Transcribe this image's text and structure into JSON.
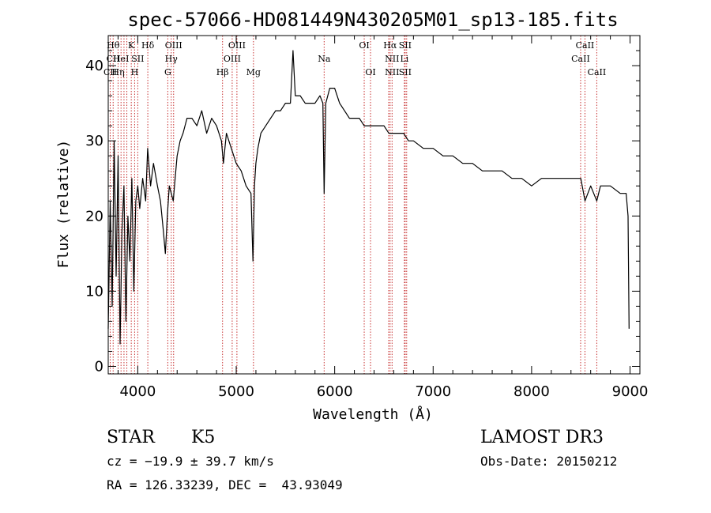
{
  "chart_data": {
    "type": "line",
    "title": "spec-57066-HD081449N430205M01_sp13-185.fits",
    "xlabel": "Wavelength (Å)",
    "ylabel": "Flux (relative)",
    "xlim": [
      3700,
      9100
    ],
    "ylim": [
      -1,
      44
    ],
    "xticks": [
      4000,
      5000,
      6000,
      7000,
      8000,
      9000
    ],
    "yticks": [
      0,
      10,
      20,
      30,
      40
    ],
    "grid": false,
    "series": [
      {
        "color": "#000000",
        "x": [
          3700,
          3720,
          3740,
          3760,
          3780,
          3800,
          3820,
          3840,
          3860,
          3880,
          3900,
          3920,
          3940,
          3960,
          3980,
          4000,
          4020,
          4050,
          4080,
          4100,
          4130,
          4160,
          4200,
          4230,
          4260,
          4280,
          4300,
          4320,
          4340,
          4360,
          4380,
          4400,
          4430,
          4460,
          4500,
          4550,
          4600,
          4650,
          4700,
          4750,
          4800,
          4850,
          4870,
          4900,
          4950,
          5000,
          5050,
          5100,
          5150,
          5170,
          5185,
          5200,
          5220,
          5250,
          5300,
          5350,
          5400,
          5450,
          5500,
          5550,
          5577,
          5600,
          5650,
          5700,
          5750,
          5800,
          5850,
          5880,
          5893,
          5910,
          5950,
          6000,
          6050,
          6100,
          6150,
          6200,
          6250,
          6300,
          6350,
          6400,
          6450,
          6500,
          6550,
          6563,
          6600,
          6650,
          6700,
          6750,
          6800,
          6900,
          7000,
          7100,
          7200,
          7300,
          7400,
          7500,
          7600,
          7700,
          7800,
          7900,
          8000,
          8100,
          8200,
          8300,
          8400,
          8500,
          8542,
          8600,
          8662,
          8700,
          8800,
          8900,
          8960,
          8980,
          8990
        ],
        "y": [
          5,
          22,
          8,
          30,
          12,
          28,
          3,
          18,
          24,
          6,
          20,
          14,
          25,
          10,
          22,
          24,
          21,
          25,
          22,
          29,
          24,
          27,
          24,
          22,
          18,
          15,
          20,
          24,
          23,
          22,
          25,
          28,
          30,
          31,
          33,
          33,
          32,
          34,
          31,
          33,
          32,
          30,
          27,
          31,
          29,
          27,
          26,
          24,
          23,
          14,
          24,
          27,
          29,
          31,
          32,
          33,
          34,
          34,
          35,
          35,
          42,
          36,
          36,
          35,
          35,
          35,
          36,
          35,
          23,
          35,
          37,
          37,
          35,
          34,
          33,
          33,
          33,
          32,
          32,
          32,
          32,
          32,
          31,
          31,
          31,
          31,
          31,
          30,
          30,
          29,
          29,
          28,
          28,
          27,
          27,
          26,
          26,
          26,
          25,
          25,
          24,
          25,
          25,
          25,
          25,
          25,
          22,
          24,
          22,
          24,
          24,
          23,
          23,
          20,
          5
        ]
      }
    ],
    "lines": [
      {
        "x": 3720,
        "labels": [
          "",
          "",
          "CII"
        ]
      },
      {
        "x": 3750,
        "labels": [
          "Hθ",
          "CII",
          ""
        ]
      },
      {
        "x": 3800,
        "labels": [
          "",
          "",
          "Hη"
        ]
      },
      {
        "x": 3830,
        "labels": [
          "",
          "HeI",
          ""
        ]
      },
      {
        "x": 3860,
        "labels": [
          "",
          "",
          ""
        ]
      },
      {
        "x": 3889,
        "labels": [
          "",
          "",
          ""
        ]
      },
      {
        "x": 3934,
        "labels": [
          "K",
          "",
          ""
        ]
      },
      {
        "x": 3968,
        "labels": [
          "",
          "",
          "H"
        ]
      },
      {
        "x": 4000,
        "labels": [
          "",
          "SII",
          ""
        ]
      },
      {
        "x": 4102,
        "labels": [
          "Hδ",
          "",
          ""
        ]
      },
      {
        "x": 4305,
        "labels": [
          "",
          "",
          "G"
        ]
      },
      {
        "x": 4340,
        "labels": [
          "",
          "Hγ",
          ""
        ]
      },
      {
        "x": 4364,
        "labels": [
          "OIII",
          "",
          ""
        ]
      },
      {
        "x": 4861,
        "labels": [
          "",
          "",
          "Hβ"
        ]
      },
      {
        "x": 4959,
        "labels": [
          "",
          "OIII",
          ""
        ]
      },
      {
        "x": 5007,
        "labels": [
          "OIII",
          "",
          ""
        ]
      },
      {
        "x": 5175,
        "labels": [
          "",
          "",
          "Mg"
        ]
      },
      {
        "x": 5893,
        "labels": [
          "",
          "Na",
          ""
        ]
      },
      {
        "x": 6300,
        "labels": [
          "OI",
          "",
          ""
        ]
      },
      {
        "x": 6364,
        "labels": [
          "",
          "",
          "OI"
        ]
      },
      {
        "x": 6548,
        "labels": [
          "",
          "",
          ""
        ]
      },
      {
        "x": 6563,
        "labels": [
          "Hα",
          "",
          ""
        ]
      },
      {
        "x": 6583,
        "labels": [
          "",
          "NII",
          "NII"
        ]
      },
      {
        "x": 6708,
        "labels": [
          "",
          "Li",
          ""
        ]
      },
      {
        "x": 6716,
        "labels": [
          "SII",
          "",
          "SII"
        ]
      },
      {
        "x": 6731,
        "labels": [
          "",
          "",
          ""
        ]
      },
      {
        "x": 8498,
        "labels": [
          "",
          "CaII",
          ""
        ]
      },
      {
        "x": 8542,
        "labels": [
          "CaII",
          "",
          ""
        ]
      },
      {
        "x": 8662,
        "labels": [
          "",
          "",
          "CaII"
        ]
      }
    ],
    "line_color": "#c83232"
  },
  "info": {
    "object_class": "STAR",
    "subclass": "K5",
    "survey": "LAMOST DR3",
    "cz": "cz = −19.9 ± 39.7 km/s",
    "obs_date": "Obs-Date: 20150212",
    "coords": "RA = 126.33239, DEC =  43.93049"
  }
}
